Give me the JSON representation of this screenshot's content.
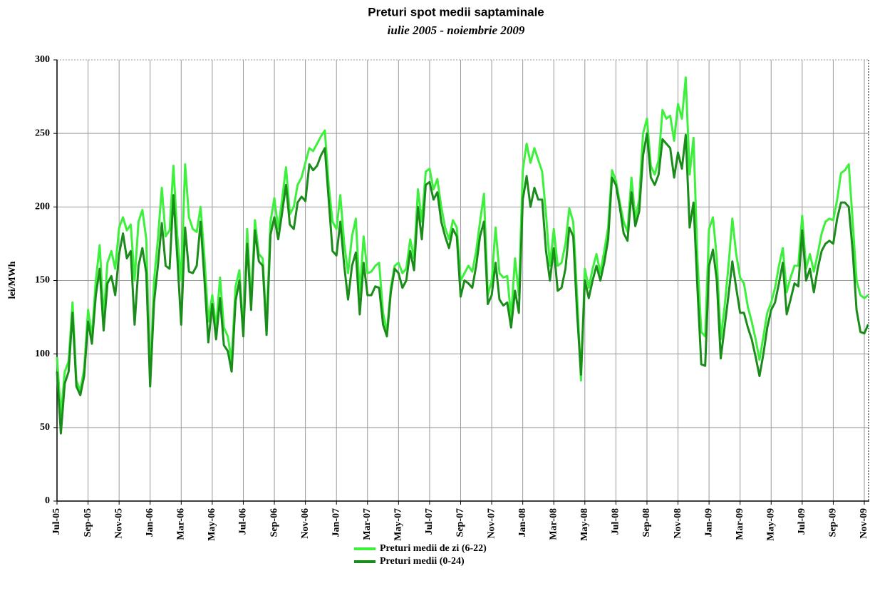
{
  "chart_data": {
    "type": "line",
    "title": "Preturi spot medii saptaminale",
    "subtitle": "iulie 2005 - noiembrie 2009",
    "y_label": "lei/MWh",
    "ylim": [
      0,
      300
    ],
    "yticks": [
      0,
      50,
      100,
      150,
      200,
      250,
      300
    ],
    "grid": true,
    "legend": "bottom",
    "categories": [
      "Jul-05",
      null,
      null,
      null,
      null,
      null,
      null,
      null,
      "Sep-05",
      null,
      null,
      null,
      null,
      null,
      null,
      null,
      "Nov-05",
      null,
      null,
      null,
      null,
      null,
      null,
      null,
      "Jan-06",
      null,
      null,
      null,
      null,
      null,
      null,
      null,
      "Mar-06",
      null,
      null,
      null,
      null,
      null,
      null,
      null,
      "May-06",
      null,
      null,
      null,
      null,
      null,
      null,
      null,
      "Jul-06",
      null,
      null,
      null,
      null,
      null,
      null,
      null,
      "Sep-06",
      null,
      null,
      null,
      null,
      null,
      null,
      null,
      "Nov-06",
      null,
      null,
      null,
      null,
      null,
      null,
      null,
      "Jan-07",
      null,
      null,
      null,
      null,
      null,
      null,
      null,
      "Mar-07",
      null,
      null,
      null,
      null,
      null,
      null,
      null,
      "May-07",
      null,
      null,
      null,
      null,
      null,
      null,
      null,
      "Jul-07",
      null,
      null,
      null,
      null,
      null,
      null,
      null,
      "Sep-07",
      null,
      null,
      null,
      null,
      null,
      null,
      null,
      "Nov-07",
      null,
      null,
      null,
      null,
      null,
      null,
      null,
      "Jan-08",
      null,
      null,
      null,
      null,
      null,
      null,
      null,
      "Mar-08",
      null,
      null,
      null,
      null,
      null,
      null,
      null,
      "May-08",
      null,
      null,
      null,
      null,
      null,
      null,
      null,
      "Jul-08",
      null,
      null,
      null,
      null,
      null,
      null,
      null,
      "Sep-08",
      null,
      null,
      null,
      null,
      null,
      null,
      null,
      "Nov-08",
      null,
      null,
      null,
      null,
      null,
      null,
      null,
      "Jan-09",
      null,
      null,
      null,
      null,
      null,
      null,
      null,
      "Mar-09",
      null,
      null,
      null,
      null,
      null,
      null,
      null,
      "May-09",
      null,
      null,
      null,
      null,
      null,
      null,
      null,
      "Jul-09",
      null,
      null,
      null,
      null,
      null,
      null,
      null,
      "Sep-09",
      null,
      null,
      null,
      null,
      null,
      null,
      null,
      "Nov-09",
      null
    ],
    "series": [
      {
        "name": "Preturi medii de zi (6-22)",
        "color": "#3cf03c",
        "values": [
          98,
          58,
          88,
          95,
          135,
          82,
          75,
          90,
          130,
          112,
          150,
          174,
          125,
          162,
          170,
          158,
          186,
          193,
          184,
          188,
          150,
          190,
          198,
          178,
          82,
          150,
          178,
          213,
          180,
          184,
          228,
          180,
          150,
          229,
          193,
          185,
          183,
          200,
          165,
          122,
          140,
          118,
          152,
          118,
          112,
          95,
          146,
          157,
          116,
          185,
          135,
          191,
          168,
          165,
          118,
          190,
          206,
          185,
          205,
          227,
          195,
          200,
          215,
          220,
          230,
          240,
          238,
          243,
          248,
          252,
          215,
          190,
          185,
          208,
          175,
          155,
          180,
          192,
          140,
          180,
          155,
          156,
          160,
          162,
          128,
          115,
          145,
          160,
          162,
          155,
          158,
          178,
          165,
          212,
          190,
          224,
          226,
          212,
          219,
          200,
          186,
          178,
          191,
          186,
          150,
          155,
          160,
          156,
          170,
          190,
          209,
          140,
          150,
          186,
          155,
          152,
          153,
          125,
          165,
          140,
          225,
          243,
          230,
          240,
          232,
          224,
          195,
          160,
          185,
          160,
          162,
          175,
          199,
          190,
          140,
          82,
          158,
          145,
          158,
          168,
          155,
          170,
          186,
          225,
          218,
          203,
          190,
          183,
          220,
          192,
          205,
          250,
          260,
          228,
          222,
          232,
          266,
          260,
          262,
          245,
          270,
          260,
          288,
          222,
          247,
          165,
          115,
          112,
          185,
          193,
          165,
          110,
          132,
          160,
          192,
          168,
          152,
          148,
          132,
          122,
          110,
          96,
          112,
          128,
          135,
          145,
          160,
          172,
          142,
          152,
          160,
          160,
          194,
          158,
          168,
          156,
          168,
          182,
          190,
          192,
          191,
          205,
          223,
          225,
          229,
          190,
          150,
          140,
          138,
          140
        ]
      },
      {
        "name": "Preturi medii (0-24)",
        "color": "#1a8c1a",
        "values": [
          88,
          46,
          80,
          88,
          128,
          78,
          72,
          85,
          122,
          107,
          140,
          158,
          116,
          148,
          153,
          140,
          168,
          182,
          165,
          170,
          120,
          160,
          172,
          155,
          78,
          135,
          160,
          189,
          160,
          158,
          208,
          165,
          120,
          186,
          156,
          155,
          160,
          190,
          150,
          108,
          134,
          110,
          138,
          106,
          102,
          88,
          136,
          150,
          112,
          175,
          130,
          184,
          163,
          160,
          113,
          181,
          193,
          178,
          196,
          215,
          188,
          185,
          203,
          207,
          204,
          229,
          225,
          228,
          235,
          240,
          205,
          170,
          167,
          190,
          160,
          137,
          160,
          169,
          127,
          162,
          140,
          140,
          146,
          145,
          120,
          112,
          142,
          158,
          155,
          145,
          150,
          170,
          157,
          200,
          178,
          215,
          217,
          205,
          210,
          190,
          180,
          172,
          185,
          180,
          139,
          150,
          148,
          145,
          160,
          180,
          190,
          134,
          140,
          162,
          137,
          133,
          135,
          118,
          143,
          128,
          205,
          221,
          200,
          213,
          205,
          205,
          170,
          150,
          172,
          143,
          145,
          158,
          186,
          180,
          128,
          86,
          150,
          138,
          150,
          160,
          150,
          162,
          178,
          220,
          215,
          200,
          182,
          177,
          210,
          187,
          197,
          235,
          250,
          220,
          215,
          222,
          246,
          243,
          240,
          220,
          237,
          226,
          249,
          186,
          203,
          145,
          93,
          92,
          160,
          171,
          150,
          97,
          118,
          140,
          163,
          145,
          128,
          128,
          118,
          110,
          98,
          85,
          100,
          118,
          130,
          135,
          148,
          162,
          127,
          137,
          148,
          146,
          184,
          150,
          158,
          142,
          158,
          170,
          175,
          177,
          175,
          192,
          203,
          203,
          200,
          170,
          130,
          115,
          114,
          120
        ]
      }
    ]
  }
}
